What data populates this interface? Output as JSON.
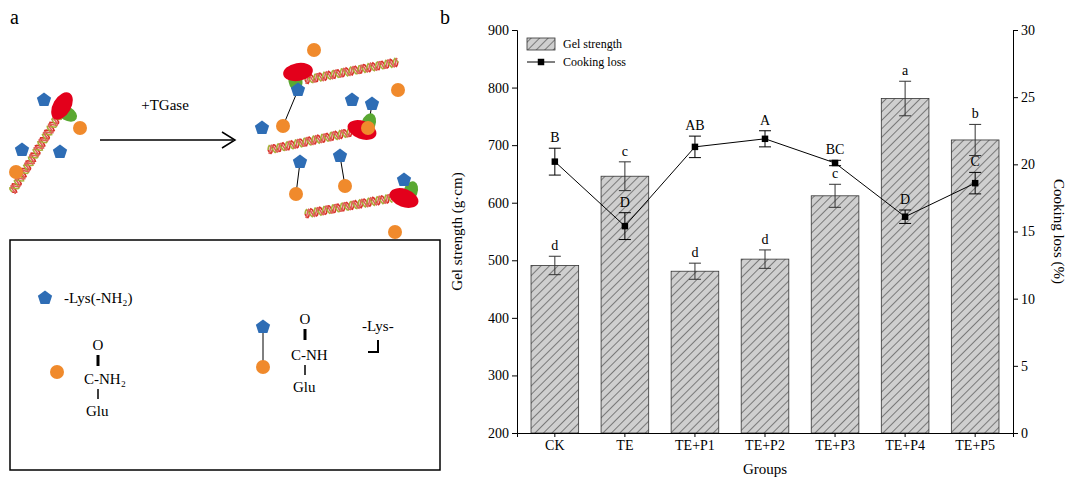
{
  "panel_labels": [
    "a",
    "b"
  ],
  "diagram": {
    "reaction": "+TGase",
    "legend": {
      "lysine": "-Lys(-NH₂)",
      "glutamine": {
        "o": "O",
        "group": "C-NH₂",
        "residue": "Glu"
      },
      "crosslink": {
        "o": "O",
        "group": "C-NH",
        "residue": "Glu",
        "lysine": "-Lys-"
      }
    }
  },
  "chart_data": {
    "type": "bar",
    "xlabel": "Groups",
    "ylabel": "Gel strength (g·cm)",
    "y2label": "Cooking loss (%)",
    "categories": [
      "CK",
      "TE",
      "TE+P1",
      "TE+P2",
      "TE+P3",
      "TE+P4",
      "TE+P5"
    ],
    "series": [
      {
        "name": "Gel strength",
        "type": "bar",
        "color": "#cfcfcf",
        "values": [
          491,
          646,
          481,
          502,
          612,
          781,
          709
        ],
        "errors": [
          16,
          25,
          14,
          16,
          20,
          30,
          27
        ],
        "significance": [
          "d",
          "c",
          "d",
          "d",
          "c",
          "a",
          "b"
        ]
      },
      {
        "name": "Cooking loss",
        "type": "line",
        "axis": "y2",
        "color": "#000000",
        "marker": "square",
        "line_style": "solid",
        "values": [
          20.2,
          15.4,
          21.3,
          21.9,
          20.1,
          16.1,
          18.6
        ],
        "errors": [
          1.0,
          1.0,
          0.8,
          0.6,
          0.2,
          0.5,
          0.8
        ],
        "significance": [
          "B",
          "D",
          "AB",
          "A",
          "BC",
          "D",
          "C"
        ]
      }
    ],
    "ylim": [
      200,
      900
    ],
    "yticks": [
      200,
      300,
      400,
      500,
      600,
      700,
      800,
      900
    ],
    "y2lim": [
      0,
      30
    ],
    "y2ticks": [
      0,
      5,
      10,
      15,
      20,
      25,
      30
    ],
    "legend": "upper left"
  }
}
